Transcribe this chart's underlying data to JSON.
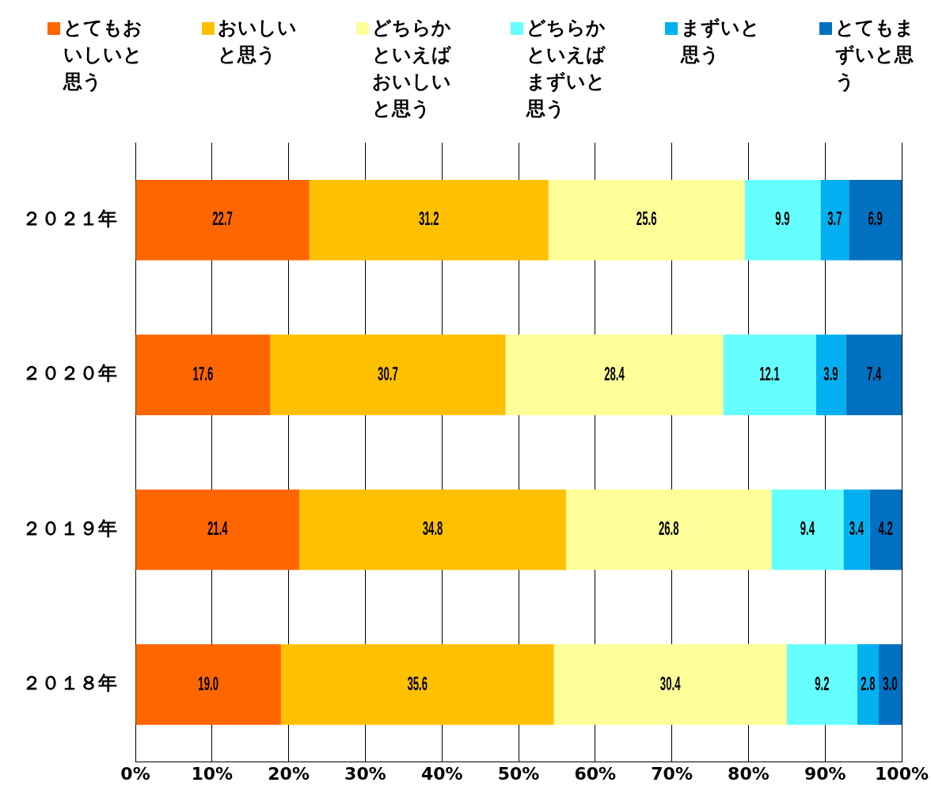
{
  "chart_data": {
    "type": "bar",
    "orientation": "horizontal",
    "stacked": true,
    "categories": [
      "２０２１年",
      "２０２０年",
      "２０１９年",
      "２０１８年"
    ],
    "series": [
      {
        "name": "とてもおいしいと思う",
        "color": "#ff6600",
        "values": [
          22.7,
          17.6,
          21.4,
          19.0
        ],
        "value_labels": [
          "22.7",
          "17.6",
          "21.4",
          "19.0"
        ]
      },
      {
        "name": "おいしいと思う",
        "color": "#ffc000",
        "values": [
          31.2,
          30.7,
          34.8,
          35.6
        ],
        "value_labels": [
          "31.2",
          "30.7",
          "34.8",
          "35.6"
        ]
      },
      {
        "name": "どちらかといえばおいしいと思う",
        "color": "#ffff99",
        "values": [
          25.6,
          28.4,
          26.8,
          30.4
        ],
        "value_labels": [
          "25.6",
          "28.4",
          "26.8",
          "30.4"
        ]
      },
      {
        "name": "どちらかといえばまずいと思う",
        "color": "#66ffff",
        "values": [
          9.9,
          12.1,
          9.4,
          9.2
        ],
        "value_labels": [
          "9.9",
          "12.1",
          "9.4",
          "9.2"
        ]
      },
      {
        "name": "まずいと思う",
        "color": "#00b0f0",
        "values": [
          3.7,
          3.9,
          3.4,
          2.8
        ],
        "value_labels": [
          "3.7",
          "3.9",
          "3.4",
          "2.8"
        ]
      },
      {
        "name": "とてもまずいと思う",
        "color": "#0070c0",
        "values": [
          6.9,
          7.4,
          4.2,
          3.0
        ],
        "value_labels": [
          "6.9",
          "7.4",
          "4.2",
          "3.0"
        ]
      }
    ],
    "xlim": [
      0,
      100
    ],
    "xticks": [
      {
        "value": 0,
        "label": "0%"
      },
      {
        "value": 10,
        "label": "10%"
      },
      {
        "value": 20,
        "label": "20%"
      },
      {
        "value": 30,
        "label": "30%"
      },
      {
        "value": 40,
        "label": "40%"
      },
      {
        "value": 50,
        "label": "50%"
      },
      {
        "value": 60,
        "label": "60%"
      },
      {
        "value": 70,
        "label": "70%"
      },
      {
        "value": 80,
        "label": "80%"
      },
      {
        "value": 90,
        "label": "90%"
      },
      {
        "value": 100,
        "label": "100%"
      }
    ],
    "grid": "x",
    "legend": "top"
  }
}
